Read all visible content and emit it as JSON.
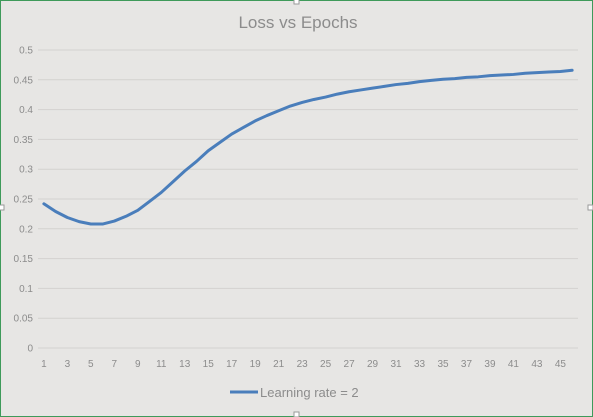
{
  "chart_data": {
    "type": "line",
    "title": "Loss vs Epochs",
    "xlabel": "",
    "ylabel": "",
    "x": [
      1,
      2,
      3,
      4,
      5,
      6,
      7,
      8,
      9,
      10,
      11,
      12,
      13,
      14,
      15,
      16,
      17,
      18,
      19,
      20,
      21,
      22,
      23,
      24,
      25,
      26,
      27,
      28,
      29,
      30,
      31,
      32,
      33,
      34,
      35,
      36,
      37,
      38,
      39,
      40,
      41,
      42,
      43,
      44,
      45,
      46
    ],
    "x_tick_labels": [
      "1",
      "3",
      "5",
      "7",
      "9",
      "11",
      "13",
      "15",
      "17",
      "19",
      "21",
      "23",
      "25",
      "27",
      "29",
      "31",
      "33",
      "35",
      "37",
      "39",
      "41",
      "43",
      "45"
    ],
    "y_tick_labels": [
      "0",
      "0.05",
      "0.1",
      "0.15",
      "0.2",
      "0.25",
      "0.3",
      "0.35",
      "0.4",
      "0.45",
      "0.5"
    ],
    "ylim": [
      0,
      0.5
    ],
    "grid": true,
    "legend_position": "bottom",
    "series": [
      {
        "name": "Learning rate = 2",
        "color": "#4a7ebb",
        "values": [
          0.242,
          0.229,
          0.219,
          0.212,
          0.208,
          0.208,
          0.213,
          0.221,
          0.231,
          0.246,
          0.261,
          0.279,
          0.297,
          0.313,
          0.331,
          0.345,
          0.359,
          0.37,
          0.381,
          0.39,
          0.398,
          0.406,
          0.412,
          0.417,
          0.421,
          0.426,
          0.43,
          0.433,
          0.436,
          0.439,
          0.442,
          0.444,
          0.447,
          0.449,
          0.451,
          0.452,
          0.454,
          0.455,
          0.457,
          0.458,
          0.459,
          0.461,
          0.462,
          0.463,
          0.464,
          0.466
        ]
      }
    ]
  }
}
